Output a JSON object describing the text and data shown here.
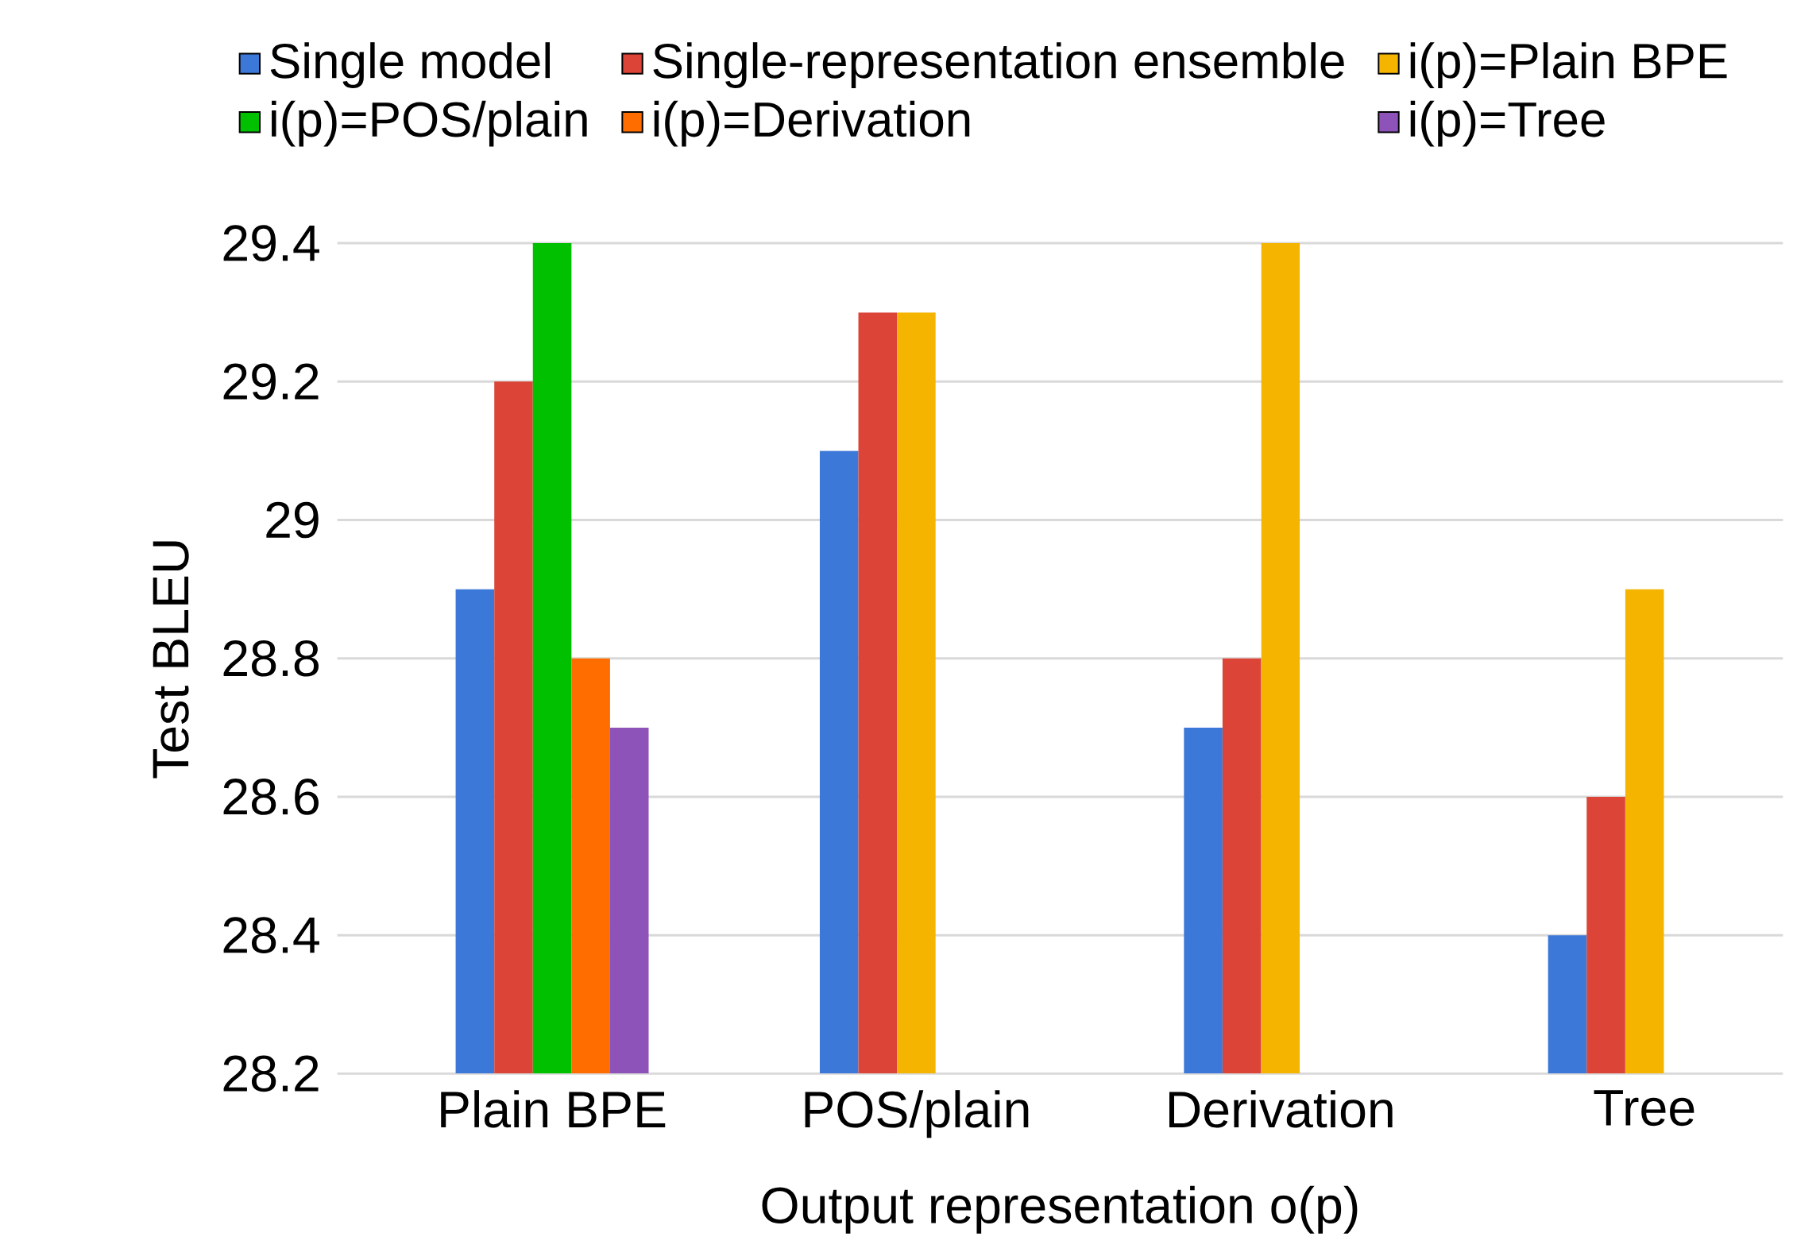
{
  "chart_data": {
    "type": "bar",
    "xlabel": "Output representation o(p)",
    "ylabel": "Test BLEU",
    "categories": [
      "Plain BPE",
      "POS/plain",
      "Derivation",
      "Tree"
    ],
    "series": [
      {
        "name": "Single model",
        "color": "#3c78d8",
        "values": [
          28.9,
          29.1,
          28.7,
          28.4
        ]
      },
      {
        "name": "Single-representation ensemble",
        "color": "#db4437",
        "values": [
          29.2,
          29.3,
          28.8,
          28.6
        ]
      },
      {
        "name": "i(p)=Plain BPE",
        "color": "#f4b400",
        "values": [
          null,
          29.3,
          29.4,
          28.9
        ]
      },
      {
        "name": "i(p)=POS/plain",
        "color": "#00c000",
        "values": [
          29.4,
          null,
          null,
          null
        ]
      },
      {
        "name": "i(p)=Derivation",
        "color": "#ff6d00",
        "values": [
          28.8,
          null,
          null,
          null
        ]
      },
      {
        "name": "i(p)=Tree",
        "color": "#8e53b8",
        "values": [
          28.7,
          null,
          null,
          null
        ]
      }
    ],
    "ylim": [
      28.2,
      29.4
    ],
    "yticks": [
      28.2,
      28.4,
      28.6,
      28.8,
      29,
      29.2,
      29.4
    ],
    "grid": "y",
    "legend": "top"
  }
}
